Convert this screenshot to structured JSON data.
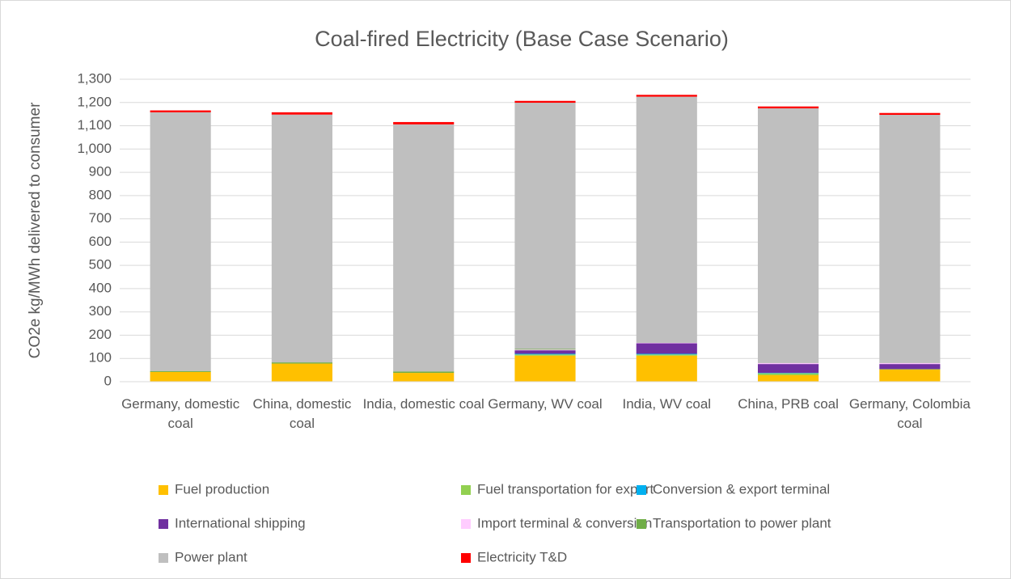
{
  "chart_data": {
    "type": "stacked_bar",
    "title": "Coal-fired Electricity (Base Case Scenario)",
    "ylabel": "CO2e kg/MWh delivered to consumer",
    "categories": [
      "Germany, domestic coal",
      "China, domestic coal",
      "India, domestic coal",
      "Germany, WV coal",
      "India, WV coal",
      "China, PRB coal",
      "Germany, Colombia coal"
    ],
    "series": [
      {
        "name": "Fuel production",
        "color": "#ffc000",
        "values": [
          42,
          78,
          38,
          112,
          112,
          28,
          52
        ]
      },
      {
        "name": "Fuel transportation for export",
        "color": "#92d050",
        "values": [
          0,
          0,
          0,
          5,
          5,
          8,
          2
        ]
      },
      {
        "name": "Conversion & export terminal",
        "color": "#00b0f0",
        "values": [
          0,
          0,
          0,
          3,
          3,
          2,
          0
        ]
      },
      {
        "name": "International shipping",
        "color": "#7030a0",
        "values": [
          0,
          0,
          0,
          15,
          45,
          38,
          22
        ]
      },
      {
        "name": "Import terminal & conversion",
        "color": "#ffccff",
        "values": [
          0,
          0,
          0,
          3,
          2,
          4,
          4
        ]
      },
      {
        "name": "Transportation to power plant",
        "color": "#70ad47",
        "values": [
          4,
          5,
          6,
          3,
          0,
          0,
          0
        ]
      },
      {
        "name": "Power plant",
        "color": "#bfbfbf",
        "values": [
          1112,
          1065,
          1062,
          1058,
          1058,
          1095,
          1067
        ]
      },
      {
        "name": "Electricity T&D",
        "color": "#ff0000",
        "values": [
          8,
          10,
          10,
          8,
          8,
          8,
          8
        ]
      }
    ],
    "ylim": [
      0,
      1300
    ],
    "yticks": [
      0,
      100,
      200,
      300,
      400,
      500,
      600,
      700,
      800,
      900,
      {
        "value": 1000,
        "label": "1,000"
      },
      {
        "value": 1100,
        "label": "1,100"
      },
      {
        "value": 1200,
        "label": "1,200"
      },
      {
        "value": 1300,
        "label": "1,300"
      }
    ],
    "grid": true
  }
}
